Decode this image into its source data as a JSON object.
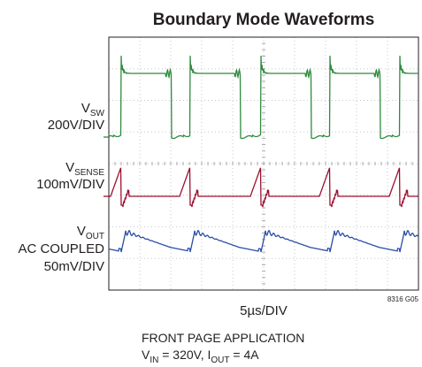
{
  "title": "Boundary Mode Waveforms",
  "channels": [
    {
      "name": "V",
      "sub": "SW",
      "scale": [
        "200V/DIV"
      ]
    },
    {
      "name": "V",
      "sub": "SENSE",
      "scale": [
        "100mV/DIV"
      ]
    },
    {
      "name": "V",
      "sub": "OUT",
      "scale": [
        "AC COUPLED",
        "50mV/DIV"
      ]
    }
  ],
  "time_scale": "5µs/DIV",
  "figure_id": "8316 G05",
  "caption": {
    "line1": "FRONT PAGE APPLICATION",
    "line2": [
      {
        "text": "V",
        "sub": "IN"
      },
      {
        "text": " = 320V, I",
        "sub": "OUT"
      },
      {
        "text": " = 4A"
      }
    ]
  }
}
